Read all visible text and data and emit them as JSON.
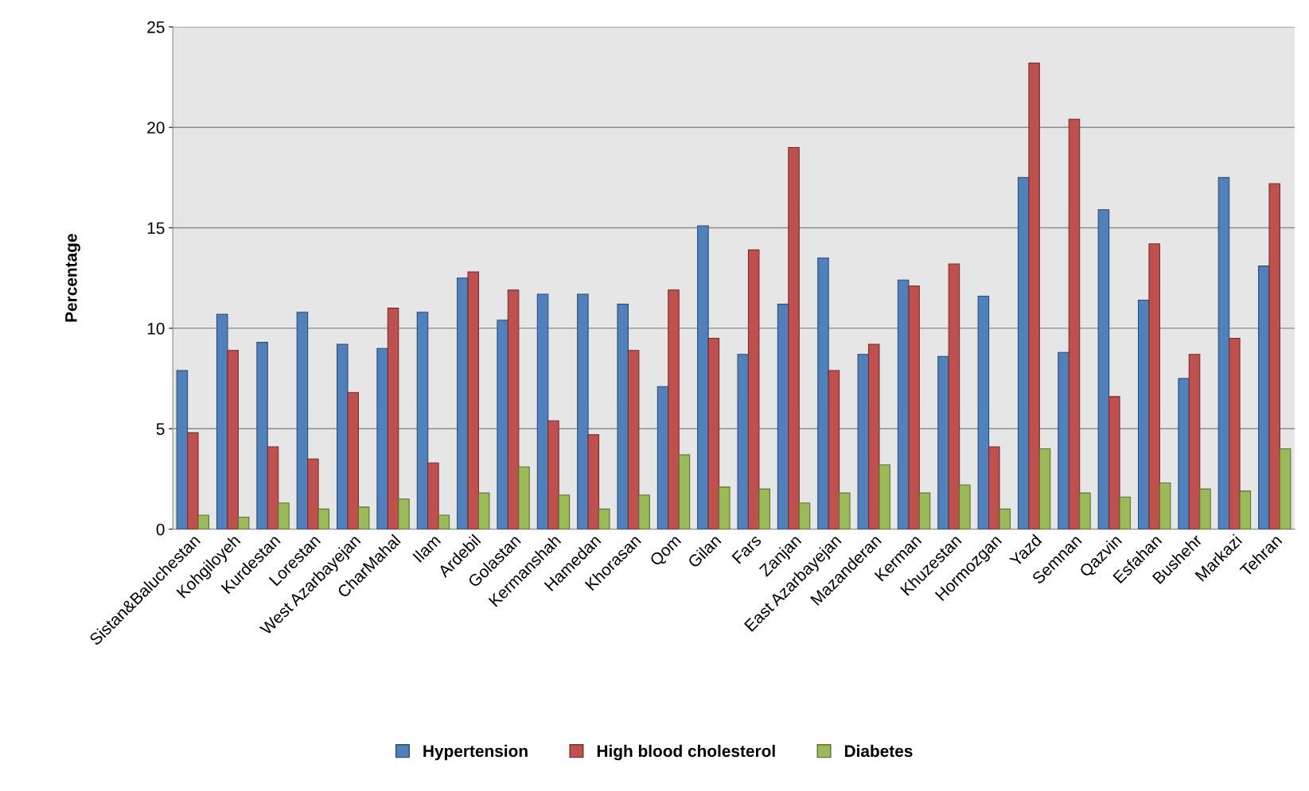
{
  "chart_data": {
    "type": "bar",
    "ylabel": "Percentage",
    "categories": [
      "Sistan&Baluchestan",
      "Kohgiloyeh",
      "Kurdestan",
      "Lorestan",
      "West Azarbayejan",
      "CharMahal",
      "Ilam",
      "Ardebil",
      "Golastan",
      "Kermanshah",
      "Hamedan",
      "Khorasan",
      "Qom",
      "Gilan",
      "Fars",
      "Zanjan",
      "East Azarbayejan",
      "Mazanderan",
      "Kerman",
      "Khuzestan",
      "Hormozgan",
      "Yazd",
      "Semnan",
      "Qazvin",
      "Esfahan",
      "Bushehr",
      "Markazi",
      "Tehran"
    ],
    "series": [
      {
        "name": "Hypertension",
        "color": "#4f81bd",
        "values": [
          7.9,
          10.7,
          9.3,
          10.8,
          9.2,
          9.0,
          10.8,
          12.5,
          10.4,
          11.7,
          11.7,
          11.2,
          7.1,
          15.1,
          8.7,
          11.2,
          13.5,
          8.7,
          12.4,
          8.6,
          11.6,
          17.5,
          8.8,
          15.9,
          11.4,
          7.5,
          17.5,
          13.1
        ]
      },
      {
        "name": "High blood cholesterol",
        "color": "#c0504d",
        "values": [
          4.8,
          8.9,
          4.1,
          3.5,
          6.8,
          11.0,
          3.3,
          12.8,
          11.9,
          5.4,
          4.7,
          8.9,
          11.9,
          9.5,
          13.9,
          19.0,
          7.9,
          9.2,
          12.1,
          13.2,
          4.1,
          23.2,
          20.4,
          6.6,
          14.2,
          8.7,
          9.5,
          17.2
        ]
      },
      {
        "name": "Diabetes",
        "color": "#9bbb59",
        "values": [
          0.7,
          0.6,
          1.3,
          1.0,
          1.1,
          1.5,
          0.7,
          1.8,
          3.1,
          1.7,
          1.0,
          1.7,
          3.7,
          2.1,
          2.0,
          1.3,
          1.8,
          3.2,
          1.8,
          2.2,
          1.0,
          4.0,
          1.8,
          1.6,
          2.3,
          2.0,
          1.9,
          4.0
        ]
      }
    ],
    "ylim": [
      0,
      25
    ],
    "yticks": [
      0,
      5,
      10,
      15,
      20,
      25
    ],
    "grid": "y",
    "legend": "bottom"
  }
}
